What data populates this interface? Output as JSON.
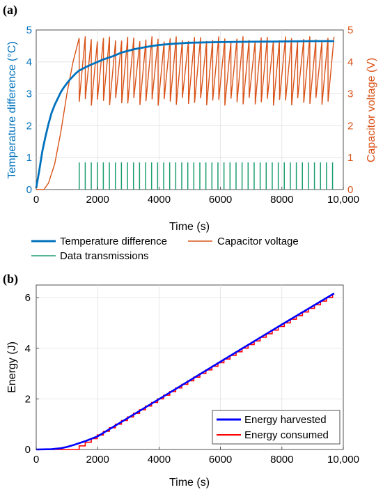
{
  "chart_data": [
    {
      "panel_label": "(a)",
      "type": "line",
      "xlabel": "Time (s)",
      "ylabel_left": "Temperature difference (°C)",
      "ylabel_right": "Capacitor voltage (V)",
      "xlim": [
        0,
        10000
      ],
      "ylim_left": [
        0,
        5
      ],
      "ylim_right": [
        0,
        5
      ],
      "x_ticks": [
        0,
        2000,
        4000,
        6000,
        8000,
        10000
      ],
      "x_tick_labels": [
        "0",
        "2000",
        "4000",
        "6000",
        "8000",
        "10,000"
      ],
      "y_ticks_left": [
        "0",
        "1",
        "2",
        "3",
        "4",
        "5"
      ],
      "y_ticks_right": [
        "0",
        "1",
        "2",
        "3",
        "4",
        "5"
      ],
      "grid": true,
      "legend_position": "below",
      "colors": {
        "temperature": "#0072BD",
        "capacitor": "#D95319",
        "transmissions": "#1B9E6E"
      },
      "series": [
        {
          "name": "Temperature difference",
          "axis": "left",
          "x": [
            0,
            100,
            200,
            300,
            400,
            500,
            600,
            700,
            800,
            900,
            1000,
            1100,
            1200,
            1300,
            1400,
            1600,
            1800,
            2000,
            2200,
            2500,
            2800,
            3200,
            3600,
            4000,
            4500,
            5000,
            6000,
            7000,
            8000,
            9000,
            9700
          ],
          "values": [
            0.05,
            0.6,
            1.2,
            1.65,
            2.05,
            2.4,
            2.65,
            2.85,
            3.05,
            3.2,
            3.33,
            3.45,
            3.55,
            3.65,
            3.73,
            3.83,
            3.92,
            4.0,
            4.08,
            4.18,
            4.3,
            4.4,
            4.47,
            4.53,
            4.57,
            4.6,
            4.62,
            4.63,
            4.64,
            4.65,
            4.65
          ]
        },
        {
          "name": "Capacitor voltage",
          "axis": "right",
          "description_points": {
            "charge_x": [
              0,
              250,
              400,
              600,
              800,
              1000,
              1200,
              1400
            ],
            "charge_y": [
              0,
              0.0,
              0.2,
              0.8,
              1.8,
              3.0,
              4.0,
              4.75
            ]
          },
          "sawtooth_start": 1400,
          "sawtooth_end": 9700,
          "sawtooth_high": 4.72,
          "sawtooth_low": 2.75,
          "cycles": 42
        },
        {
          "name": "Data transmissions",
          "axis": "right",
          "start": 1400,
          "end": 9650,
          "count": 43,
          "height": 0.85
        }
      ]
    },
    {
      "panel_label": "(b)",
      "type": "line",
      "xlabel": "Time (s)",
      "ylabel": "Energy (J)",
      "xlim": [
        0,
        10000
      ],
      "ylim": [
        0,
        6.5
      ],
      "x_ticks": [
        0,
        2000,
        4000,
        6000,
        8000,
        10000
      ],
      "x_tick_labels": [
        "0",
        "2000",
        "4000",
        "6000",
        "8000",
        "10,000"
      ],
      "y_ticks": [
        0,
        2,
        4,
        6
      ],
      "y_tick_labels": [
        "0",
        "2",
        "4",
        "6"
      ],
      "grid": true,
      "legend_position": "bottom-right",
      "colors": {
        "harvested": "#0000FF",
        "consumed": "#FF0000"
      },
      "series": [
        {
          "name": "Energy harvested",
          "x": [
            0,
            500,
            800,
            1000,
            1200,
            1400,
            1600,
            2000,
            4000,
            6000,
            8000,
            9700
          ],
          "values": [
            0,
            0.01,
            0.05,
            0.1,
            0.17,
            0.25,
            0.33,
            0.52,
            1.99,
            3.47,
            4.94,
            6.17
          ]
        },
        {
          "name": "Energy consumed",
          "start": 1400,
          "end": 9650,
          "steps": 43,
          "step_size": 0.143
        }
      ]
    }
  ]
}
